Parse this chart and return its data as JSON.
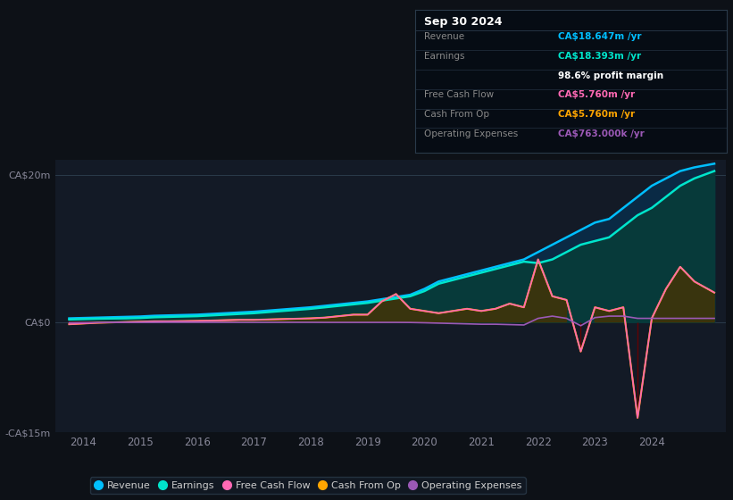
{
  "bg_color": "#0d1117",
  "plot_bg_color": "#131a26",
  "title": "Sep 30 2024",
  "table": {
    "Revenue": {
      "value": "CA$18.647m /yr",
      "color": "#00bfff"
    },
    "Earnings": {
      "value": "CA$18.393m /yr",
      "color": "#00e5cc"
    },
    "profit_margin": {
      "value": "98.6% profit margin",
      "color": "#ffffff"
    },
    "Free Cash Flow": {
      "value": "CA$5.760m /yr",
      "color": "#ff69b4"
    },
    "Cash From Op": {
      "value": "CA$5.760m /yr",
      "color": "#ffa500"
    },
    "Operating Expenses": {
      "value": "CA$763.000k /yr",
      "color": "#9b59b6"
    }
  },
  "ylim": [
    -15,
    22
  ],
  "yticks_labels": [
    "CA$20m",
    "CA$0",
    "-CA$15m"
  ],
  "yticks_values": [
    20,
    0,
    -15
  ],
  "xlim": [
    2013.5,
    2025.3
  ],
  "xticks": [
    2014,
    2015,
    2016,
    2017,
    2018,
    2019,
    2020,
    2021,
    2022,
    2023,
    2024
  ],
  "legend": [
    {
      "label": "Revenue",
      "color": "#00bfff"
    },
    {
      "label": "Earnings",
      "color": "#00e5cc"
    },
    {
      "label": "Free Cash Flow",
      "color": "#ff69b4"
    },
    {
      "label": "Cash From Op",
      "color": "#ffa500"
    },
    {
      "label": "Operating Expenses",
      "color": "#9b59b6"
    }
  ],
  "revenue": {
    "x": [
      2013.75,
      2014.0,
      2014.25,
      2014.5,
      2014.75,
      2015.0,
      2015.25,
      2015.5,
      2015.75,
      2016.0,
      2016.25,
      2016.5,
      2016.75,
      2017.0,
      2017.25,
      2017.5,
      2017.75,
      2018.0,
      2018.25,
      2018.5,
      2018.75,
      2019.0,
      2019.25,
      2019.5,
      2019.75,
      2020.0,
      2020.25,
      2020.5,
      2020.75,
      2021.0,
      2021.25,
      2021.5,
      2021.75,
      2022.0,
      2022.25,
      2022.5,
      2022.75,
      2023.0,
      2023.25,
      2023.5,
      2023.75,
      2024.0,
      2024.25,
      2024.5,
      2024.75,
      2025.1
    ],
    "y": [
      0.5,
      0.55,
      0.6,
      0.65,
      0.7,
      0.75,
      0.85,
      0.9,
      0.95,
      1.0,
      1.1,
      1.2,
      1.3,
      1.4,
      1.55,
      1.7,
      1.85,
      2.0,
      2.2,
      2.4,
      2.6,
      2.8,
      3.1,
      3.4,
      3.7,
      4.5,
      5.5,
      6.0,
      6.5,
      7.0,
      7.5,
      8.0,
      8.5,
      9.5,
      10.5,
      11.5,
      12.5,
      13.5,
      14.0,
      15.5,
      17.0,
      18.5,
      19.5,
      20.5,
      21.0,
      21.5
    ],
    "color": "#00bfff",
    "fill_color": "#0a2a45"
  },
  "earnings": {
    "x": [
      2013.75,
      2014.0,
      2014.25,
      2014.5,
      2014.75,
      2015.0,
      2015.25,
      2015.5,
      2015.75,
      2016.0,
      2016.25,
      2016.5,
      2016.75,
      2017.0,
      2017.25,
      2017.5,
      2017.75,
      2018.0,
      2018.25,
      2018.5,
      2018.75,
      2019.0,
      2019.25,
      2019.5,
      2019.75,
      2020.0,
      2020.25,
      2020.5,
      2020.75,
      2021.0,
      2021.25,
      2021.5,
      2021.75,
      2022.0,
      2022.25,
      2022.5,
      2022.75,
      2023.0,
      2023.25,
      2023.5,
      2023.75,
      2024.0,
      2024.25,
      2024.5,
      2024.75,
      2025.1
    ],
    "y": [
      0.35,
      0.4,
      0.45,
      0.48,
      0.5,
      0.55,
      0.65,
      0.7,
      0.75,
      0.8,
      0.9,
      1.0,
      1.1,
      1.2,
      1.35,
      1.5,
      1.65,
      1.8,
      2.0,
      2.2,
      2.4,
      2.6,
      2.9,
      3.2,
      3.5,
      4.2,
      5.2,
      5.7,
      6.2,
      6.7,
      7.2,
      7.7,
      8.2,
      8.0,
      8.5,
      9.5,
      10.5,
      11.0,
      11.5,
      13.0,
      14.5,
      15.5,
      17.0,
      18.5,
      19.5,
      20.5
    ],
    "color": "#00e5cc",
    "fill_color": "#073a3a"
  },
  "cash_from_op": {
    "x": [
      2013.75,
      2014.0,
      2014.25,
      2014.5,
      2014.75,
      2015.0,
      2015.25,
      2015.5,
      2015.75,
      2016.0,
      2016.25,
      2016.5,
      2016.75,
      2017.0,
      2017.25,
      2017.5,
      2017.75,
      2018.0,
      2018.25,
      2018.5,
      2018.75,
      2019.0,
      2019.25,
      2019.5,
      2019.75,
      2020.0,
      2020.25,
      2020.5,
      2020.75,
      2021.0,
      2021.25,
      2021.5,
      2021.75,
      2022.0,
      2022.25,
      2022.5,
      2022.75,
      2023.0,
      2023.25,
      2023.5,
      2023.75,
      2024.0,
      2024.25,
      2024.5,
      2024.75,
      2025.1
    ],
    "y": [
      -0.3,
      -0.2,
      -0.1,
      -0.05,
      0.0,
      0.05,
      0.1,
      0.1,
      0.12,
      0.15,
      0.2,
      0.25,
      0.3,
      0.3,
      0.35,
      0.4,
      0.45,
      0.5,
      0.6,
      0.8,
      1.0,
      1.0,
      2.8,
      3.8,
      1.8,
      1.5,
      1.2,
      1.5,
      1.8,
      1.5,
      1.8,
      2.5,
      2.0,
      8.5,
      3.5,
      3.0,
      -4.0,
      2.0,
      1.5,
      2.0,
      -13.0,
      0.5,
      4.5,
      7.5,
      5.5,
      4.0
    ],
    "color": "#ffa500",
    "fill_color_pos": "#4a3200",
    "fill_color_neg": "#6b0000"
  },
  "free_cash_flow": {
    "x": [
      2013.75,
      2014.0,
      2014.25,
      2014.5,
      2014.75,
      2015.0,
      2015.25,
      2015.5,
      2015.75,
      2016.0,
      2016.25,
      2016.5,
      2016.75,
      2017.0,
      2017.25,
      2017.5,
      2017.75,
      2018.0,
      2018.25,
      2018.5,
      2018.75,
      2019.0,
      2019.25,
      2019.5,
      2019.75,
      2020.0,
      2020.25,
      2020.5,
      2020.75,
      2021.0,
      2021.25,
      2021.5,
      2021.75,
      2022.0,
      2022.25,
      2022.5,
      2022.75,
      2023.0,
      2023.25,
      2023.5,
      2023.75,
      2024.0,
      2024.25,
      2024.5,
      2024.75,
      2025.1
    ],
    "y": [
      -0.3,
      -0.2,
      -0.1,
      -0.05,
      0.0,
      0.05,
      0.1,
      0.1,
      0.12,
      0.15,
      0.2,
      0.25,
      0.3,
      0.3,
      0.35,
      0.4,
      0.45,
      0.5,
      0.6,
      0.8,
      1.0,
      1.0,
      2.8,
      3.8,
      1.8,
      1.5,
      1.2,
      1.5,
      1.8,
      1.5,
      1.8,
      2.5,
      2.0,
      8.5,
      3.5,
      3.0,
      -4.0,
      2.0,
      1.5,
      2.0,
      -13.0,
      0.5,
      4.5,
      7.5,
      5.5,
      4.0
    ],
    "color": "#ff69b4"
  },
  "operating_expenses": {
    "x": [
      2013.75,
      2014.0,
      2014.25,
      2014.5,
      2014.75,
      2015.0,
      2015.25,
      2015.5,
      2015.75,
      2016.0,
      2016.25,
      2016.5,
      2016.75,
      2017.0,
      2017.25,
      2017.5,
      2017.75,
      2018.0,
      2018.25,
      2018.5,
      2018.75,
      2019.0,
      2019.25,
      2019.5,
      2019.75,
      2020.0,
      2020.25,
      2020.5,
      2020.75,
      2021.0,
      2021.25,
      2021.5,
      2021.75,
      2022.0,
      2022.25,
      2022.5,
      2022.75,
      2023.0,
      2023.25,
      2023.5,
      2023.75,
      2024.0,
      2024.25,
      2024.5,
      2024.75,
      2025.1
    ],
    "y": [
      -0.1,
      -0.08,
      -0.07,
      -0.06,
      -0.05,
      -0.05,
      -0.05,
      -0.04,
      -0.04,
      -0.04,
      -0.04,
      -0.04,
      -0.04,
      -0.04,
      -0.04,
      -0.04,
      -0.04,
      -0.04,
      -0.05,
      -0.05,
      -0.05,
      -0.05,
      -0.05,
      -0.05,
      -0.06,
      -0.1,
      -0.15,
      -0.2,
      -0.25,
      -0.3,
      -0.3,
      -0.35,
      -0.4,
      0.5,
      0.8,
      0.5,
      -0.5,
      0.6,
      0.8,
      0.8,
      0.5,
      0.5,
      0.5,
      0.5,
      0.5,
      0.5
    ],
    "color": "#9b59b6"
  },
  "table_rows": [
    {
      "label": "Revenue",
      "value": "CA$18.647m /yr",
      "value_color": "#00bfff"
    },
    {
      "label": "Earnings",
      "value": "CA$18.393m /yr",
      "value_color": "#00e5cc"
    },
    {
      "label": "",
      "value": "98.6% profit margin",
      "value_color": "#ffffff"
    },
    {
      "label": "Free Cash Flow",
      "value": "CA$5.760m /yr",
      "value_color": "#ff69b4"
    },
    {
      "label": "Cash From Op",
      "value": "CA$5.760m /yr",
      "value_color": "#ffa500"
    },
    {
      "label": "Operating Expenses",
      "value": "CA$763.000k /yr",
      "value_color": "#9b59b6"
    }
  ]
}
